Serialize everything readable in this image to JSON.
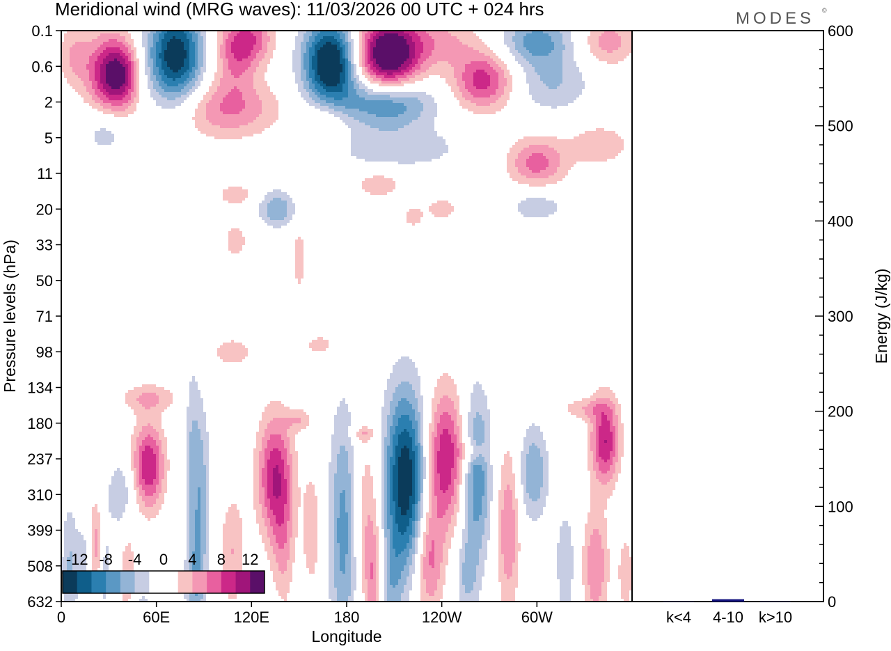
{
  "title": "Meridional wind (MRG waves):  11/03/2026  00 UTC  + 024 hrs",
  "brand": "MODES",
  "brand_mark": "©",
  "chart_data": [
    {
      "type": "heatmap",
      "title": "Meridional wind (MRG waves):  11/03/2026  00 UTC  + 024 hrs",
      "xlabel": "Longitude",
      "ylabel": "Pressure levels (hPa)",
      "x_ticks": [
        "0",
        "60E",
        "120E",
        "180",
        "120W",
        "60W"
      ],
      "x_tick_lon": [
        0,
        60,
        120,
        180,
        240,
        300
      ],
      "xlim": [
        0,
        360
      ],
      "y_ticks": [
        "0.1",
        "0.6",
        "2",
        "5",
        "11",
        "20",
        "33",
        "50",
        "71",
        "98",
        "134",
        "180",
        "237",
        "310",
        "399",
        "508",
        "632"
      ],
      "y_axis_order": "top-to-bottom",
      "colorbar": {
        "labels": [
          "-12",
          "-8",
          "-4",
          "0",
          "4",
          "8",
          "12"
        ],
        "levels": [
          -14,
          -12,
          -10,
          -8,
          -6,
          -4,
          -2,
          0,
          2,
          4,
          6,
          8,
          10,
          12,
          14
        ],
        "colors": [
          "#0b3b5a",
          "#0f5e8a",
          "#2b7fb0",
          "#5b98c4",
          "#93b4d6",
          "#c7cde3",
          "#ffffff",
          "#ffffff",
          "#f8c3c3",
          "#f498b4",
          "#e8609f",
          "#cc2888",
          "#a0157a",
          "#5a0f68"
        ]
      },
      "blobs": [
        {
          "lon": 30,
          "lev": 1.2,
          "wl": 14,
          "wv": 1.1,
          "v": 11
        },
        {
          "lon": 40,
          "lev": 1.3,
          "wl": 10,
          "wv": 0.9,
          "v": 6
        },
        {
          "lon": 8,
          "lev": 0.7,
          "wl": 10,
          "wv": 0.9,
          "v": 4
        },
        {
          "lon": 72,
          "lev": 0.7,
          "wl": 17,
          "wv": 1.3,
          "v": -14
        },
        {
          "lon": 28,
          "lev": 2.8,
          "wl": 14,
          "wv": 0.7,
          "v": -3.5
        },
        {
          "lon": 110,
          "lev": 0.7,
          "wl": 14,
          "wv": 1.0,
          "v": 6
        },
        {
          "lon": 120,
          "lev": 0.2,
          "wl": 15,
          "wv": 0.7,
          "v": 6
        },
        {
          "lon": 105,
          "lev": 2.2,
          "wl": 32,
          "wv": 0.8,
          "v": 6
        },
        {
          "lon": 170,
          "lev": 0.9,
          "wl": 17,
          "wv": 1.2,
          "v": -16
        },
        {
          "lon": 167,
          "lev": 2.7,
          "wl": 14,
          "wv": 0.8,
          "v": 4
        },
        {
          "lon": 206,
          "lev": 0.7,
          "wl": 21,
          "wv": 1.1,
          "v": 16
        },
        {
          "lon": 206,
          "lev": 2.0,
          "wl": 27,
          "wv": 0.7,
          "v": -10
        },
        {
          "lon": 240,
          "lev": 0.3,
          "wl": 24,
          "wv": 0.7,
          "v": 4
        },
        {
          "lon": 266,
          "lev": 1.4,
          "wl": 19,
          "wv": 0.8,
          "v": 9
        },
        {
          "lon": 300,
          "lev": 0.3,
          "wl": 22,
          "wv": 0.7,
          "v": -7
        },
        {
          "lon": 345,
          "lev": 0.3,
          "wl": 17,
          "wv": 0.7,
          "v": 5
        },
        {
          "lon": 310,
          "lev": 1.5,
          "wl": 24,
          "wv": 0.8,
          "v": -4
        },
        {
          "lon": 300,
          "lev": 3.7,
          "wl": 18,
          "wv": 0.7,
          "v": 7
        },
        {
          "lon": 210,
          "lev": 3.3,
          "wl": 45,
          "wv": 0.6,
          "v": -3.5
        },
        {
          "lon": 340,
          "lev": 3.2,
          "wl": 20,
          "wv": 0.6,
          "v": 3.5
        },
        {
          "lon": 200,
          "lev": 4.3,
          "wl": 16,
          "wv": 0.4,
          "v": 3.5
        },
        {
          "lon": 136,
          "lev": 5.0,
          "wl": 11,
          "wv": 0.5,
          "v": -6
        },
        {
          "lon": 300,
          "lev": 4.9,
          "wl": 18,
          "wv": 0.5,
          "v": -3.5
        },
        {
          "lon": 110,
          "lev": 4.6,
          "wl": 12,
          "wv": 0.3,
          "v": 3.5
        },
        {
          "lon": 110,
          "lev": 5.9,
          "wl": 7,
          "wv": 0.5,
          "v": 3.5
        },
        {
          "lon": 150,
          "lev": 6.4,
          "wl": 4,
          "wv": 0.9,
          "v": 3.5
        },
        {
          "lon": 240,
          "lev": 5.0,
          "wl": 10,
          "wv": 0.3,
          "v": 3.5
        },
        {
          "lon": 222,
          "lev": 5.2,
          "wl": 6,
          "wv": 0.3,
          "v": 3.5
        },
        {
          "lon": 163,
          "lev": 8.8,
          "wl": 9,
          "wv": 0.25,
          "v": 3.5
        },
        {
          "lon": 330,
          "lev": 10.6,
          "wl": 15,
          "wv": 0.3,
          "v": 3.5
        },
        {
          "lon": 108,
          "lev": 9.0,
          "wl": 13,
          "wv": 0.4,
          "v": 3.5
        },
        {
          "lon": 150,
          "lev": 10.9,
          "wl": 8,
          "wv": 0.3,
          "v": 3.5
        },
        {
          "lon": 260,
          "lev": 11.8,
          "wl": 10,
          "wv": 0.35,
          "v": 3.5
        },
        {
          "lon": 190,
          "lev": 11.3,
          "wl": 8,
          "wv": 0.2,
          "v": 3.5
        },
        {
          "lon": 55,
          "lev": 10.3,
          "wl": 18,
          "wv": 0.4,
          "v": 4
        },
        {
          "lon": 55,
          "lev": 12.2,
          "wl": 10,
          "wv": 1.2,
          "v": 10
        },
        {
          "lon": 38,
          "lev": 13.0,
          "wl": 9,
          "wv": 1.0,
          "v": -4
        },
        {
          "lon": 22,
          "lev": 14.5,
          "wl": 5,
          "wv": 1.3,
          "v": 6
        },
        {
          "lon": 5,
          "lev": 15.0,
          "wl": 5,
          "wv": 1.8,
          "v": -4
        },
        {
          "lon": 15,
          "lev": 14.9,
          "wl": 6,
          "wv": 1.2,
          "v": -3.5
        },
        {
          "lon": 27,
          "lev": 15.0,
          "wl": 4,
          "wv": 1.4,
          "v": -4
        },
        {
          "lon": 42,
          "lev": 15.5,
          "wl": 5,
          "wv": 1.6,
          "v": 4
        },
        {
          "lon": 50,
          "lev": 16.3,
          "wl": 10,
          "wv": 0.6,
          "v": -3.5
        },
        {
          "lon": 88,
          "lev": 13.0,
          "wl": 6,
          "wv": 2.6,
          "v": -5
        },
        {
          "lon": 84,
          "lev": 15.6,
          "wl": 6,
          "wv": 1.8,
          "v": -5
        },
        {
          "lon": 82,
          "lev": 11.5,
          "wl": 5,
          "wv": 2.3,
          "v": -3
        },
        {
          "lon": 108,
          "lev": 14.6,
          "wl": 8,
          "wv": 1.6,
          "v": 4
        },
        {
          "lon": 135,
          "lev": 12.5,
          "wl": 11,
          "wv": 1.7,
          "v": 10
        },
        {
          "lon": 140,
          "lev": 14.5,
          "wl": 7,
          "wv": 1.6,
          "v": 4
        },
        {
          "lon": 158,
          "lev": 14.0,
          "wl": 6,
          "wv": 1.7,
          "v": 3.5
        },
        {
          "lon": 178,
          "lev": 14.0,
          "wl": 9,
          "wv": 3.3,
          "v": -7
        },
        {
          "lon": 193,
          "lev": 13.5,
          "wl": 9,
          "wv": 2.2,
          "v": 4
        },
        {
          "lon": 197,
          "lev": 15.4,
          "wl": 6,
          "wv": 1.5,
          "v": 5
        },
        {
          "lon": 217,
          "lev": 12.6,
          "wl": 13,
          "wv": 2.5,
          "v": -14
        },
        {
          "lon": 208,
          "lev": 15.5,
          "wl": 7,
          "wv": 1.5,
          "v": -4
        },
        {
          "lon": 242,
          "lev": 12.0,
          "wl": 12,
          "wv": 1.9,
          "v": 10
        },
        {
          "lon": 232,
          "lev": 14.8,
          "wl": 9,
          "wv": 1.6,
          "v": 7
        },
        {
          "lon": 262,
          "lev": 12.5,
          "wl": 9,
          "wv": 2.3,
          "v": -8
        },
        {
          "lon": 256,
          "lev": 15.3,
          "wl": 7,
          "wv": 1.2,
          "v": -4
        },
        {
          "lon": 282,
          "lev": 14.0,
          "wl": 7,
          "wv": 2.2,
          "v": 6
        },
        {
          "lon": 298,
          "lev": 12.4,
          "wl": 9,
          "wv": 1.3,
          "v": -6
        },
        {
          "lon": 318,
          "lev": 14.9,
          "wl": 6,
          "wv": 1.4,
          "v": -4
        },
        {
          "lon": 343,
          "lev": 11.5,
          "wl": 9,
          "wv": 1.2,
          "v": 10
        },
        {
          "lon": 337,
          "lev": 15.0,
          "wl": 8,
          "wv": 1.6,
          "v": 6
        },
        {
          "lon": 356,
          "lev": 15.2,
          "wl": 5,
          "wv": 1.1,
          "v": 3.5
        },
        {
          "lon": 305,
          "lev": 16.3,
          "wl": 12,
          "wv": 0.3,
          "v": -3.5
        },
        {
          "lon": 150,
          "lev": 16.4,
          "wl": 8,
          "wv": 0.35,
          "v": 3.5
        }
      ]
    },
    {
      "type": "bar",
      "ylabel": "Energy (J/kg)",
      "ylim": [
        0,
        600
      ],
      "y_ticks": [
        0,
        100,
        200,
        300,
        400,
        500,
        600
      ],
      "categories": [
        "k<4",
        "4-10",
        "k>10"
      ],
      "values": [
        0.5,
        2.5,
        0.5
      ],
      "bar_colors": [
        "#1a1a3a",
        "#151580",
        "#1a1a3a"
      ]
    }
  ]
}
